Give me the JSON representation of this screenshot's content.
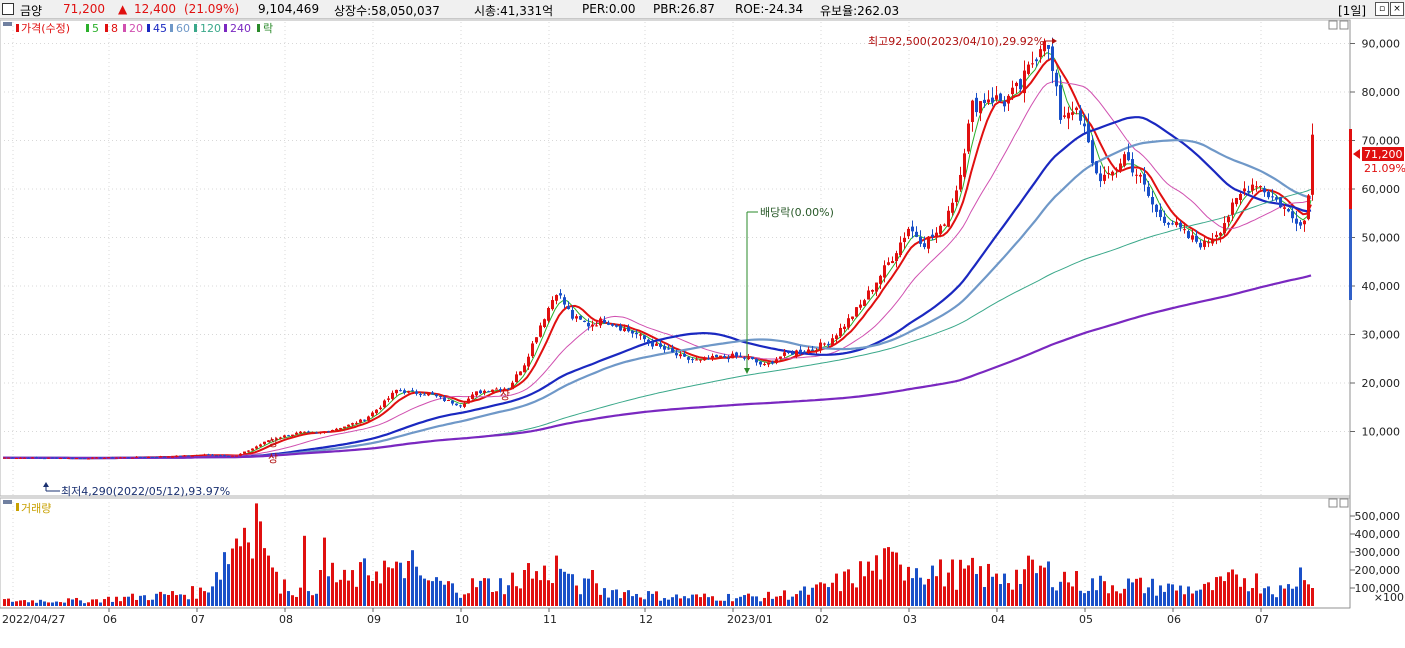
{
  "header": {
    "name": "금양",
    "price": "71,200",
    "change_arrow": "▲",
    "change": "12,400",
    "change_pct": "(21.09%)",
    "volume": "9,104,469",
    "shares": "상장수:58,050,037",
    "mktcap": "시총:41,331억",
    "per": "PER:0.00",
    "pbr": "PBR:26.87",
    "roe": "ROE:-24.34",
    "float": "유보율:262.03",
    "period": "[1일]"
  },
  "legend": {
    "price": "가격(수정)",
    "ma5": "5",
    "ma8": "8",
    "ma20": "20",
    "ma45": "45",
    "ma60": "60",
    "ma120": "120",
    "ma240": "240",
    "lak": "락"
  },
  "colors": {
    "up": "#e01010",
    "down": "#1a50c8",
    "ma5": "#2bb02b",
    "ma8": "#e01010",
    "ma20": "#d050b0",
    "ma45": "#1a28c0",
    "ma60": "#6f98c8",
    "ma120": "#3aa88a",
    "ma240": "#7a28c0",
    "volume_label": "#c8a000"
  },
  "annotations": {
    "high": "최고92,500(2023/04/10),29.92%",
    "low": "최저4,290(2022/05/12),93.97%",
    "dividend": "배당락(0.00%)",
    "sang": "상"
  },
  "volume_panel": {
    "label": "거래량",
    "ticks": [
      "500,000",
      "400,000",
      "300,000",
      "200,000",
      "100,000"
    ],
    "unit": "×100"
  },
  "chart_data": {
    "type": "candlestick",
    "y_ticks": [
      "90,000",
      "80,000",
      "70,000",
      "60,000",
      "50,000",
      "40,000",
      "30,000",
      "20,000",
      "10,000"
    ],
    "ylim": [
      0,
      96000
    ],
    "current_price_label": "71,200",
    "current_pct_label": "21.09%",
    "x_labels": [
      "2022/04/27",
      "06",
      "07",
      "08",
      "09",
      "10",
      "11",
      "12",
      "2023/01",
      "02",
      "03",
      "04",
      "05",
      "06",
      "07"
    ],
    "close_path": [
      [
        0,
        4600
      ],
      [
        20,
        4500
      ],
      [
        40,
        4800
      ],
      [
        50,
        5200
      ],
      [
        58,
        5000
      ],
      [
        62,
        6500
      ],
      [
        66,
        8200
      ],
      [
        70,
        9100
      ],
      [
        74,
        9800
      ],
      [
        78,
        9600
      ],
      [
        82,
        10400
      ],
      [
        86,
        11300
      ],
      [
        90,
        12500
      ],
      [
        94,
        15200
      ],
      [
        98,
        18500
      ],
      [
        102,
        18000
      ],
      [
        106,
        17800
      ],
      [
        110,
        16500
      ],
      [
        114,
        15500
      ],
      [
        118,
        18000
      ],
      [
        122,
        18800
      ],
      [
        126,
        19000
      ],
      [
        130,
        24000
      ],
      [
        134,
        32000
      ],
      [
        138,
        39000
      ],
      [
        142,
        33500
      ],
      [
        146,
        32000
      ],
      [
        150,
        33000
      ],
      [
        154,
        31500
      ],
      [
        158,
        30000
      ],
      [
        162,
        28000
      ],
      [
        166,
        26500
      ],
      [
        170,
        25000
      ],
      [
        174,
        24500
      ],
      [
        178,
        25200
      ],
      [
        182,
        25500
      ],
      [
        186,
        25000
      ],
      [
        190,
        23500
      ],
      [
        194,
        25500
      ],
      [
        198,
        26500
      ],
      [
        202,
        27000
      ],
      [
        206,
        28500
      ],
      [
        210,
        32000
      ],
      [
        214,
        36000
      ],
      [
        218,
        41000
      ],
      [
        222,
        46000
      ],
      [
        226,
        52000
      ],
      [
        230,
        49000
      ],
      [
        234,
        51500
      ],
      [
        238,
        60000
      ],
      [
        242,
        77000
      ],
      [
        246,
        79000
      ],
      [
        250,
        78000
      ],
      [
        254,
        81000
      ],
      [
        258,
        88000
      ],
      [
        260,
        92000
      ],
      [
        262,
        84000
      ],
      [
        264,
        75000
      ],
      [
        267,
        77000
      ],
      [
        270,
        72000
      ],
      [
        273,
        63000
      ],
      [
        276,
        62000
      ],
      [
        280,
        67000
      ],
      [
        284,
        62000
      ],
      [
        288,
        55000
      ],
      [
        292,
        53000
      ],
      [
        296,
        50000
      ],
      [
        300,
        48500
      ],
      [
        304,
        52000
      ],
      [
        307,
        56000
      ],
      [
        310,
        60000
      ],
      [
        313,
        61500
      ],
      [
        316,
        59000
      ],
      [
        319,
        57000
      ],
      [
        322,
        54000
      ],
      [
        325,
        53500
      ],
      [
        326,
        58800
      ],
      [
        327,
        71200
      ]
    ],
    "volume_path": [
      [
        0,
        3
      ],
      [
        20,
        3
      ],
      [
        40,
        6
      ],
      [
        50,
        8
      ],
      [
        62,
        52
      ],
      [
        66,
        16
      ],
      [
        70,
        12
      ],
      [
        74,
        8
      ],
      [
        78,
        12
      ],
      [
        86,
        14
      ],
      [
        94,
        22
      ],
      [
        98,
        18
      ],
      [
        106,
        14
      ],
      [
        114,
        9
      ],
      [
        118,
        12
      ],
      [
        126,
        12
      ],
      [
        130,
        20
      ],
      [
        134,
        16
      ],
      [
        138,
        22
      ],
      [
        142,
        12
      ],
      [
        150,
        9
      ],
      [
        166,
        5
      ],
      [
        178,
        5
      ],
      [
        190,
        5
      ],
      [
        202,
        8
      ],
      [
        210,
        14
      ],
      [
        218,
        22
      ],
      [
        226,
        24
      ],
      [
        234,
        18
      ],
      [
        242,
        18
      ],
      [
        250,
        15
      ],
      [
        258,
        20
      ],
      [
        262,
        18
      ],
      [
        270,
        12
      ],
      [
        280,
        12
      ],
      [
        290,
        10
      ],
      [
        300,
        9
      ],
      [
        310,
        16
      ],
      [
        320,
        8
      ],
      [
        327,
        25
      ]
    ],
    "volume_ylim": [
      0,
      600000
    ],
    "series": [
      {
        "name": "5",
        "offset": 0.6
      },
      {
        "name": "8",
        "offset": 1
      },
      {
        "name": "20",
        "offset": 2.6
      },
      {
        "name": "45",
        "offset": 5.2
      },
      {
        "name": "60",
        "offset": 6.5
      },
      {
        "name": "120",
        "offset": 12
      },
      {
        "name": "240",
        "offset": 22
      }
    ]
  }
}
